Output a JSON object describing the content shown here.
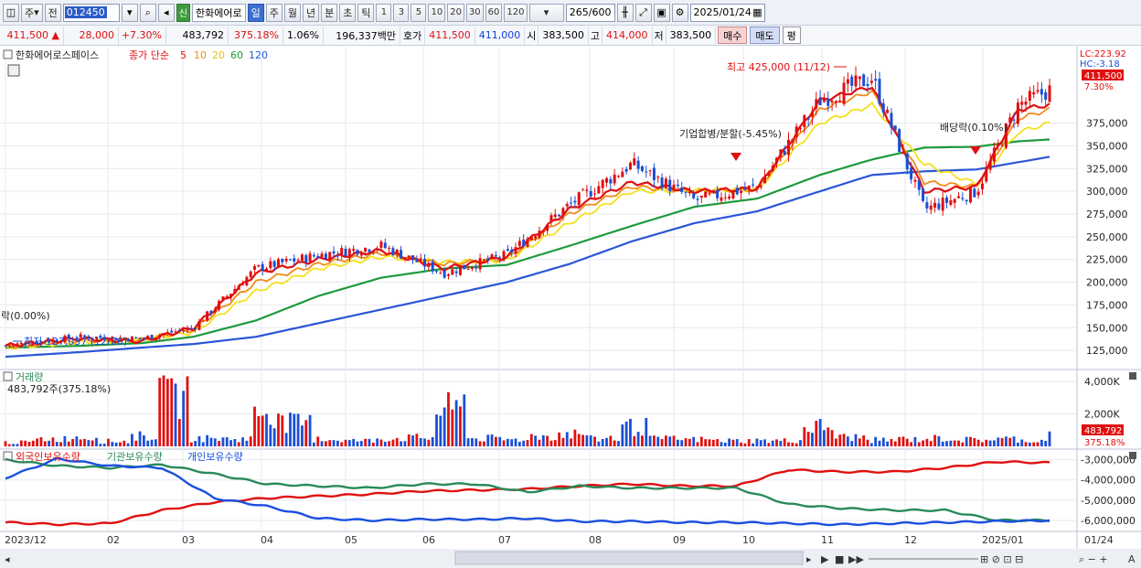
{
  "toolbar": {
    "type_label": "주",
    "prev_label": "전",
    "stock_code": "012450",
    "shin_label": "신",
    "stock_name": "한화에어로",
    "periods": [
      "일",
      "주",
      "월",
      "년",
      "분",
      "초",
      "틱"
    ],
    "active_period": "일",
    "intervals": [
      "1",
      "3",
      "5",
      "10",
      "20",
      "30",
      "60",
      "120"
    ],
    "count": "265",
    "count_total": "/600",
    "date": "2025/01/24"
  },
  "pricebar": {
    "price": "411,500",
    "change": "28,000",
    "change_pct": "+7.30%",
    "volume": "483,792",
    "volume_pct": "375.18%",
    "turnover_pct": "1.06%",
    "amount": "196,337백만",
    "quote_label": "호가",
    "ask": "411,500",
    "bid": "411,000",
    "open_label": "시",
    "open": "383,500",
    "high_label": "고",
    "high": "414,000",
    "low_label": "저",
    "low": "383,500",
    "buy_label": "매수",
    "sell_label": "매도",
    "eval_label": "평"
  },
  "price_panel": {
    "stock_title": "한화에어로스페이스",
    "ma_label": "종가 단순",
    "ma_periods": [
      "5",
      "10",
      "20",
      "60",
      "120"
    ],
    "lc_label": "LC:223.92",
    "hc_label": "HC:-3.18",
    "last_price_tag": "411,500",
    "last_pct_tag": "7.30%",
    "high_annotation": "최고 425,000 (11/12)",
    "low_annotation": "최저 127,037 (12/26)",
    "left_event": "락(0.00%)",
    "event_merger": "기업합병/분할(-5.45%)",
    "event_dividend": "배당락(0.10%)"
  },
  "volume_panel": {
    "title": "거래량",
    "subtitle": "483,792주(375.18%)",
    "last_tag": "483,792",
    "last_pct_tag": "375.18%"
  },
  "holdings_panel": {
    "legend": [
      "외국인보유수량",
      "기관보유수량",
      "개인보유수량"
    ]
  },
  "x_axis": {
    "labels": [
      "2023/12",
      "02",
      "03",
      "04",
      "05",
      "06",
      "07",
      "08",
      "09",
      "10",
      "11",
      "12",
      "2025/01"
    ],
    "right_label": "01/24"
  },
  "colors": {
    "up": "#e01010",
    "down": "#1a4fd6",
    "ma5": "#e01010",
    "ma10": "#f08c1a",
    "ma20": "#f5e01a",
    "ma60": "#1e9a3c",
    "ma120": "#2a56d6",
    "foreign": "#e01010",
    "institution": "#2a8a5a",
    "individual": "#1a4fe0"
  },
  "chart_data": [
    {
      "type": "candlestick",
      "title": "한화에어로스페이스",
      "y_ticks": [
        125000,
        150000,
        175000,
        200000,
        225000,
        250000,
        275000,
        300000,
        325000,
        350000,
        375000
      ],
      "ylim": [
        108000,
        440000
      ],
      "months": [
        "2023/12",
        "02",
        "03",
        "04",
        "05",
        "06",
        "07",
        "08",
        "09",
        "10",
        "11",
        "12",
        "2025/01"
      ],
      "series": [
        {
          "name": "5",
          "values": [
            130000,
            138000,
            135000,
            150000,
            210000,
            225000,
            235000,
            215000,
            228000,
            280000,
            310000,
            300000,
            303000,
            400000,
            415000,
            300000,
            305000,
            390000,
            395000
          ]
        },
        {
          "name": "10",
          "values": [
            129000,
            136000,
            136000,
            148000,
            200000,
            220000,
            232000,
            220000,
            226000,
            275000,
            305000,
            300000,
            302000,
            390000,
            410000,
            310000,
            305000,
            380000,
            390000
          ]
        },
        {
          "name": "20",
          "values": [
            128000,
            134000,
            137000,
            145000,
            190000,
            215000,
            228000,
            222000,
            224000,
            265000,
            300000,
            301000,
            302000,
            375000,
            395000,
            330000,
            308000,
            365000,
            375000
          ]
        },
        {
          "name": "60",
          "values": [
            128000,
            130000,
            133000,
            140000,
            158000,
            185000,
            205000,
            215000,
            219000,
            240000,
            262000,
            283000,
            292000,
            318000,
            335000,
            348000,
            349000,
            355000,
            357000
          ]
        },
        {
          "name": "120",
          "values": [
            118000,
            123000,
            128000,
            132000,
            140000,
            155000,
            170000,
            185000,
            200000,
            220000,
            245000,
            265000,
            278000,
            300000,
            318000,
            322000,
            324000,
            332000,
            338000
          ]
        }
      ],
      "x_positions": [
        0,
        0.07,
        0.13,
        0.18,
        0.24,
        0.3,
        0.36,
        0.42,
        0.48,
        0.54,
        0.6,
        0.66,
        0.72,
        0.78,
        0.83,
        0.88,
        0.93,
        0.97,
        1.0
      ],
      "close_profile": [
        130000,
        140000,
        138000,
        150000,
        215000,
        230000,
        240000,
        210000,
        230000,
        285000,
        330000,
        290000,
        305000,
        400000,
        425000,
        280000,
        300000,
        395000,
        411500
      ]
    },
    {
      "type": "bar",
      "title": "거래량",
      "y_ticks": [
        "2,000K",
        "4,000K"
      ],
      "ylim": [
        0,
        4400000
      ],
      "values": [
        350000,
        650000,
        800000,
        450000,
        900000,
        4200000,
        700000,
        650000,
        3100000,
        2000000,
        600000,
        500000,
        700000,
        750000,
        3200000,
        700000,
        600000,
        900000,
        1100000,
        650000,
        1700000,
        650000,
        600000,
        500000,
        480000,
        500000,
        1700000,
        800000,
        550000,
        600000,
        700000,
        580000,
        650000,
        500000,
        483792
      ]
    },
    {
      "type": "line",
      "title": "외국인보유수량 / 기관보유수량 / 개인보유수량",
      "y_ticks": [
        "-3,000,000",
        "-4,000,000",
        "-5,000,000",
        "-6,000,000"
      ],
      "ylim": [
        -6500000,
        -2700000
      ],
      "series": [
        {
          "name": "외국인보유수량",
          "values": [
            -6100000,
            -6200000,
            -6150000,
            -5500000,
            -5100000,
            -4900000,
            -4800000,
            -4700000,
            -4550000,
            -4500000,
            -4450000,
            -4300000,
            -4200000,
            -4300000,
            -4300000,
            -3500000,
            -3600000,
            -3600000,
            -3400000,
            -3100000,
            -3150000
          ]
        },
        {
          "name": "기관보유수량",
          "values": [
            -3000000,
            -3300000,
            -3400000,
            -3250000,
            -3700000,
            -4200000,
            -4300000,
            -4400000,
            -4200000,
            -4200000,
            -4600000,
            -4300000,
            -4400000,
            -4400000,
            -4400000,
            -5200000,
            -5400000,
            -5500000,
            -5500000,
            -6000000,
            -6000000
          ]
        },
        {
          "name": "개인보유수량",
          "values": [
            -3900000,
            -2950000,
            -3300000,
            -3400000,
            -4900000,
            -5300000,
            -5900000,
            -6000000,
            -5950000,
            -5950000,
            -5900000,
            -6050000,
            -6050000,
            -6100000,
            -6100000,
            -6150000,
            -6200000,
            -6150000,
            -6100000,
            -6050000,
            -6000000
          ]
        }
      ]
    }
  ]
}
